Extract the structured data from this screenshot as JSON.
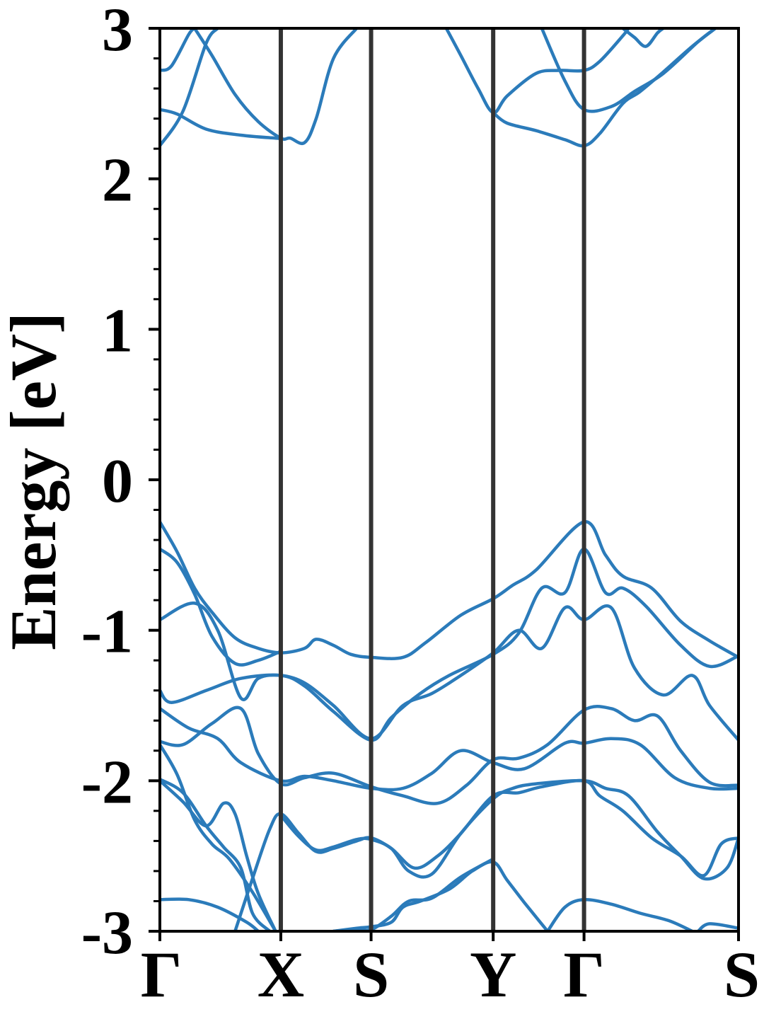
{
  "chart_data": {
    "type": "line",
    "title": "",
    "xlabel": "",
    "ylabel": "Energy [eV]",
    "ylim": [
      -3,
      3
    ],
    "grid": false,
    "legend": "none",
    "x_ticks": [
      "Γ",
      "X",
      "S",
      "Y",
      "Γ",
      "S"
    ],
    "y_ticks": [
      "3",
      "2",
      "1",
      "0",
      "-1",
      "-2",
      "-3"
    ],
    "high_symmetry_path": [
      {
        "label": "Γ",
        "k": 0.0
      },
      {
        "label": "X",
        "k": 0.209
      },
      {
        "label": "S",
        "k": 0.365
      },
      {
        "label": "Y",
        "k": 0.576
      },
      {
        "label": "Γ",
        "k": 0.733
      },
      {
        "label": "S",
        "k": 1.0
      }
    ],
    "band_color": "#2b7bba",
    "symmetry_line_color": "#333333",
    "series": [
      {
        "values": [
          [
            0.0,
            2.22
          ],
          [
            0.04,
            2.45
          ],
          [
            0.08,
            2.9
          ],
          [
            0.1,
            3.0
          ]
        ]
      },
      {
        "values": [
          [
            0.0,
            2.46
          ],
          [
            0.03,
            2.43
          ],
          [
            0.08,
            2.33
          ],
          [
            0.14,
            2.29
          ],
          [
            0.2,
            2.27
          ],
          [
            0.209,
            2.27
          ]
        ]
      },
      {
        "values": [
          [
            0.0,
            2.72
          ],
          [
            0.02,
            2.75
          ],
          [
            0.05,
            2.96
          ],
          [
            0.06,
            3.0
          ]
        ]
      },
      {
        "values": [
          [
            0.06,
            3.0
          ],
          [
            0.09,
            2.82
          ],
          [
            0.13,
            2.56
          ],
          [
            0.17,
            2.38
          ],
          [
            0.209,
            2.27
          ],
          [
            0.225,
            2.27
          ],
          [
            0.25,
            2.24
          ],
          [
            0.27,
            2.4
          ],
          [
            0.3,
            2.8
          ],
          [
            0.34,
            3.0
          ]
        ]
      },
      {
        "values": [
          [
            0.495,
            3.0
          ],
          [
            0.52,
            2.82
          ],
          [
            0.55,
            2.6
          ],
          [
            0.576,
            2.44
          ],
          [
            0.6,
            2.55
          ],
          [
            0.65,
            2.7
          ],
          [
            0.69,
            2.72
          ],
          [
            0.733,
            2.72
          ],
          [
            0.76,
            2.78
          ],
          [
            0.8,
            2.95
          ],
          [
            0.81,
            3.0
          ]
        ]
      },
      {
        "values": [
          [
            0.576,
            2.44
          ],
          [
            0.6,
            2.37
          ],
          [
            0.65,
            2.32
          ],
          [
            0.7,
            2.26
          ],
          [
            0.733,
            2.22
          ],
          [
            0.76,
            2.3
          ],
          [
            0.8,
            2.5
          ],
          [
            0.83,
            2.58
          ],
          [
            0.87,
            2.71
          ],
          [
            0.92,
            2.88
          ],
          [
            0.96,
            3.0
          ]
        ]
      },
      {
        "values": [
          [
            0.66,
            3.0
          ],
          [
            0.7,
            2.65
          ],
          [
            0.733,
            2.46
          ],
          [
            0.78,
            2.48
          ],
          [
            0.82,
            2.58
          ],
          [
            0.87,
            2.7
          ],
          [
            0.93,
            2.91
          ],
          [
            0.96,
            3.0
          ]
        ]
      },
      {
        "values": [
          [
            0.8,
            3.0
          ],
          [
            0.82,
            2.94
          ],
          [
            0.84,
            2.88
          ],
          [
            0.86,
            2.97
          ],
          [
            0.87,
            3.0
          ]
        ]
      },
      {
        "values": [
          [
            0.0,
            -0.28
          ],
          [
            0.03,
            -0.48
          ],
          [
            0.06,
            -0.72
          ],
          [
            0.09,
            -0.88
          ],
          [
            0.13,
            -1.05
          ],
          [
            0.17,
            -1.12
          ],
          [
            0.209,
            -1.15
          ],
          [
            0.25,
            -1.12
          ],
          [
            0.27,
            -1.06
          ],
          [
            0.3,
            -1.1
          ],
          [
            0.33,
            -1.16
          ],
          [
            0.365,
            -1.18
          ],
          [
            0.42,
            -1.18
          ],
          [
            0.46,
            -1.08
          ],
          [
            0.52,
            -0.9
          ],
          [
            0.576,
            -0.79
          ],
          [
            0.61,
            -0.7
          ],
          [
            0.65,
            -0.6
          ],
          [
            0.733,
            -0.28
          ],
          [
            0.77,
            -0.5
          ],
          [
            0.8,
            -0.64
          ],
          [
            0.85,
            -0.72
          ],
          [
            0.9,
            -0.94
          ],
          [
            0.95,
            -1.07
          ],
          [
            1.0,
            -1.18
          ]
        ]
      },
      {
        "values": [
          [
            0.0,
            -0.46
          ],
          [
            0.03,
            -0.55
          ],
          [
            0.06,
            -0.76
          ],
          [
            0.09,
            -1.04
          ],
          [
            0.13,
            -1.22
          ],
          [
            0.17,
            -1.2
          ],
          [
            0.209,
            -1.14
          ]
        ]
      },
      {
        "values": [
          [
            0.0,
            -0.93
          ],
          [
            0.06,
            -0.82
          ],
          [
            0.1,
            -1.0
          ],
          [
            0.14,
            -1.45
          ],
          [
            0.17,
            -1.32
          ],
          [
            0.209,
            -1.3
          ],
          [
            0.25,
            -1.35
          ],
          [
            0.3,
            -1.5
          ],
          [
            0.365,
            -1.72
          ],
          [
            0.42,
            -1.5
          ],
          [
            0.47,
            -1.42
          ],
          [
            0.52,
            -1.3
          ],
          [
            0.576,
            -1.15
          ],
          [
            0.62,
            -1.0
          ],
          [
            0.66,
            -1.12
          ],
          [
            0.7,
            -0.85
          ],
          [
            0.733,
            -0.93
          ],
          [
            0.78,
            -0.85
          ],
          [
            0.82,
            -1.25
          ],
          [
            0.87,
            -1.43
          ],
          [
            0.92,
            -1.3
          ],
          [
            0.95,
            -1.5
          ],
          [
            1.0,
            -1.73
          ]
        ]
      },
      {
        "values": [
          [
            0.0,
            -1.4
          ],
          [
            0.02,
            -1.48
          ],
          [
            0.08,
            -1.4
          ],
          [
            0.14,
            -1.32
          ],
          [
            0.209,
            -1.3
          ],
          [
            0.25,
            -1.37
          ],
          [
            0.3,
            -1.54
          ],
          [
            0.365,
            -1.73
          ],
          [
            0.4,
            -1.58
          ],
          [
            0.45,
            -1.42
          ],
          [
            0.5,
            -1.3
          ],
          [
            0.576,
            -1.16
          ],
          [
            0.62,
            -1.02
          ],
          [
            0.66,
            -0.72
          ],
          [
            0.7,
            -0.75
          ],
          [
            0.733,
            -0.46
          ],
          [
            0.77,
            -0.75
          ],
          [
            0.8,
            -0.72
          ],
          [
            0.84,
            -0.84
          ],
          [
            0.9,
            -1.1
          ],
          [
            0.95,
            -1.24
          ],
          [
            1.0,
            -1.17
          ]
        ]
      },
      {
        "values": [
          [
            0.0,
            -1.52
          ],
          [
            0.05,
            -1.65
          ],
          [
            0.1,
            -1.72
          ],
          [
            0.14,
            -1.88
          ],
          [
            0.209,
            -2.0
          ],
          [
            0.25,
            -1.97
          ],
          [
            0.3,
            -2.0
          ],
          [
            0.365,
            -2.05
          ],
          [
            0.42,
            -2.05
          ],
          [
            0.47,
            -1.95
          ],
          [
            0.52,
            -1.8
          ],
          [
            0.576,
            -1.88
          ],
          [
            0.63,
            -1.92
          ],
          [
            0.7,
            -1.75
          ],
          [
            0.733,
            -1.75
          ],
          [
            0.78,
            -1.72
          ],
          [
            0.83,
            -1.76
          ],
          [
            0.89,
            -1.98
          ],
          [
            0.95,
            -2.05
          ],
          [
            1.0,
            -2.05
          ]
        ]
      },
      {
        "values": [
          [
            0.0,
            -1.74
          ],
          [
            0.04,
            -1.76
          ],
          [
            0.09,
            -1.62
          ],
          [
            0.14,
            -1.52
          ],
          [
            0.17,
            -1.82
          ],
          [
            0.209,
            -2.02
          ],
          [
            0.25,
            -1.98
          ],
          [
            0.3,
            -1.95
          ],
          [
            0.365,
            -2.04
          ],
          [
            0.42,
            -2.1
          ],
          [
            0.48,
            -2.15
          ],
          [
            0.53,
            -2.03
          ],
          [
            0.576,
            -1.86
          ],
          [
            0.62,
            -1.85
          ],
          [
            0.67,
            -1.76
          ],
          [
            0.733,
            -1.53
          ],
          [
            0.78,
            -1.52
          ],
          [
            0.82,
            -1.6
          ],
          [
            0.86,
            -1.57
          ],
          [
            0.9,
            -1.8
          ],
          [
            0.95,
            -2.01
          ],
          [
            1.0,
            -2.03
          ]
        ]
      },
      {
        "values": [
          [
            0.0,
            -1.76
          ],
          [
            0.03,
            -1.96
          ],
          [
            0.06,
            -2.26
          ],
          [
            0.09,
            -2.42
          ],
          [
            0.12,
            -2.52
          ],
          [
            0.16,
            -2.74
          ],
          [
            0.2,
            -3.0
          ]
        ]
      },
      {
        "values": [
          [
            0.0,
            -2.0
          ],
          [
            0.04,
            -2.14
          ],
          [
            0.08,
            -2.3
          ],
          [
            0.11,
            -2.15
          ],
          [
            0.13,
            -2.22
          ],
          [
            0.15,
            -2.5
          ],
          [
            0.17,
            -2.75
          ],
          [
            0.2,
            -3.0
          ]
        ]
      },
      {
        "values": [
          [
            0.0,
            -1.99
          ],
          [
            0.04,
            -2.08
          ],
          [
            0.08,
            -2.3
          ],
          [
            0.11,
            -2.44
          ],
          [
            0.14,
            -2.58
          ],
          [
            0.16,
            -2.88
          ],
          [
            0.19,
            -3.0
          ]
        ]
      },
      {
        "values": [
          [
            0.13,
            -3.0
          ],
          [
            0.16,
            -2.65
          ],
          [
            0.19,
            -2.32
          ],
          [
            0.209,
            -2.22
          ],
          [
            0.24,
            -2.35
          ],
          [
            0.27,
            -2.47
          ],
          [
            0.3,
            -2.45
          ],
          [
            0.34,
            -2.4
          ],
          [
            0.365,
            -2.38
          ],
          [
            0.4,
            -2.45
          ],
          [
            0.44,
            -2.58
          ],
          [
            0.48,
            -2.5
          ],
          [
            0.52,
            -2.35
          ],
          [
            0.576,
            -2.1
          ],
          [
            0.62,
            -2.08
          ],
          [
            0.66,
            -2.04
          ],
          [
            0.733,
            -2.0
          ],
          [
            0.76,
            -2.1
          ],
          [
            0.8,
            -2.2
          ],
          [
            0.85,
            -2.38
          ],
          [
            0.9,
            -2.5
          ],
          [
            0.94,
            -2.63
          ],
          [
            0.97,
            -2.42
          ],
          [
            1.0,
            -2.38
          ]
        ]
      },
      {
        "values": [
          [
            0.209,
            -2.23
          ],
          [
            0.24,
            -2.37
          ],
          [
            0.27,
            -2.46
          ],
          [
            0.3,
            -2.44
          ],
          [
            0.34,
            -2.39
          ],
          [
            0.365,
            -2.39
          ],
          [
            0.4,
            -2.45
          ],
          [
            0.43,
            -2.6
          ],
          [
            0.47,
            -2.62
          ],
          [
            0.52,
            -2.35
          ],
          [
            0.576,
            -2.12
          ],
          [
            0.61,
            -2.05
          ],
          [
            0.65,
            -2.02
          ],
          [
            0.733,
            -2.0
          ],
          [
            0.77,
            -2.05
          ],
          [
            0.81,
            -2.1
          ],
          [
            0.86,
            -2.34
          ],
          [
            0.9,
            -2.5
          ],
          [
            0.94,
            -2.65
          ],
          [
            0.98,
            -2.58
          ],
          [
            1.0,
            -2.38
          ]
        ]
      },
      {
        "values": [
          [
            0.0,
            -2.79
          ],
          [
            0.05,
            -2.79
          ],
          [
            0.1,
            -2.84
          ],
          [
            0.15,
            -2.94
          ],
          [
            0.17,
            -3.0
          ]
        ]
      },
      {
        "values": [
          [
            0.3,
            -3.0
          ],
          [
            0.34,
            -2.98
          ],
          [
            0.365,
            -2.97
          ],
          [
            0.4,
            -2.94
          ],
          [
            0.42,
            -2.84
          ],
          [
            0.45,
            -2.8
          ],
          [
            0.5,
            -2.72
          ],
          [
            0.54,
            -2.6
          ],
          [
            0.576,
            -2.54
          ],
          [
            0.6,
            -2.66
          ],
          [
            0.63,
            -2.81
          ],
          [
            0.67,
            -3.0
          ]
        ]
      },
      {
        "values": [
          [
            0.3,
            -3.0
          ],
          [
            0.34,
            -2.99
          ],
          [
            0.365,
            -2.99
          ],
          [
            0.4,
            -2.9
          ],
          [
            0.43,
            -2.8
          ],
          [
            0.47,
            -2.78
          ],
          [
            0.52,
            -2.64
          ],
          [
            0.576,
            -2.52
          ]
        ]
      },
      {
        "values": [
          [
            0.67,
            -3.0
          ],
          [
            0.7,
            -2.84
          ],
          [
            0.733,
            -2.79
          ],
          [
            0.78,
            -2.82
          ],
          [
            0.83,
            -2.88
          ],
          [
            0.88,
            -2.93
          ],
          [
            0.92,
            -3.0
          ]
        ]
      },
      {
        "values": [
          [
            0.93,
            -3.0
          ],
          [
            0.95,
            -2.95
          ],
          [
            1.0,
            -2.98
          ]
        ]
      }
    ]
  }
}
